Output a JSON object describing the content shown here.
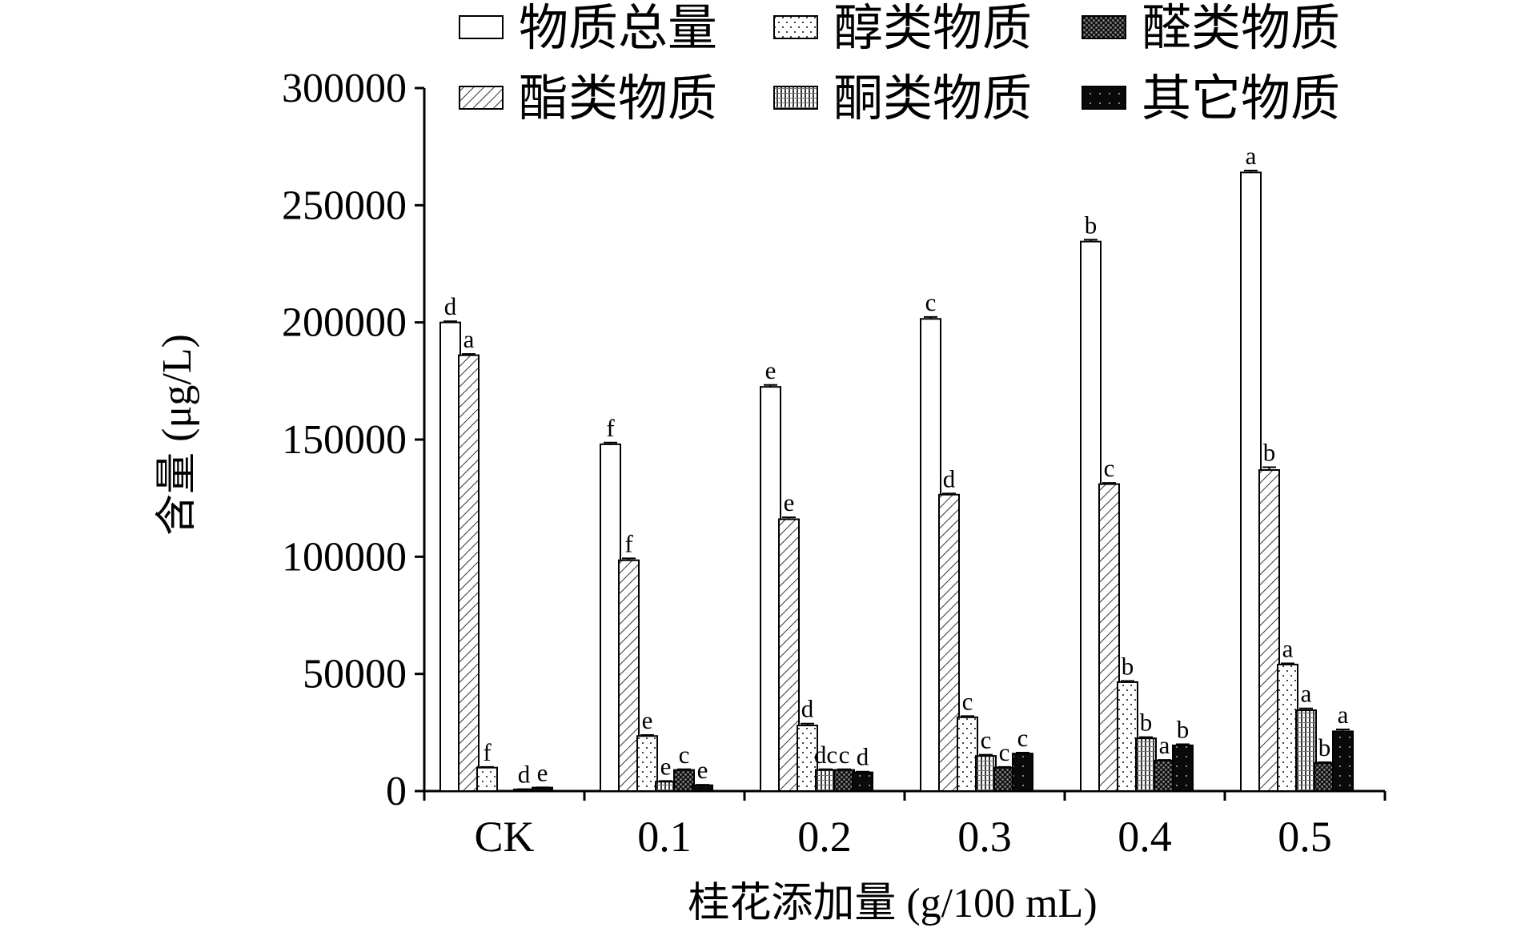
{
  "chart_data": {
    "type": "bar",
    "title": "",
    "xlabel": "桂花添加量 (g/100 mL)",
    "ylabel": "含量 (μg/L)",
    "ylim": [
      0,
      300000
    ],
    "yticks": [
      0,
      50000,
      100000,
      150000,
      200000,
      250000,
      300000
    ],
    "ytick_labels": [
      "0",
      "50000",
      "100000",
      "150000",
      "200000",
      "250000",
      "300000"
    ],
    "categories": [
      "CK",
      "0.1",
      "0.2",
      "0.3",
      "0.4",
      "0.5"
    ],
    "legend_position": "top",
    "series": [
      {
        "name": "物质总量",
        "pattern": "white",
        "values": [
          200000,
          148000,
          172500,
          201500,
          234500,
          264000
        ],
        "errors": [
          500,
          700,
          800,
          800,
          800,
          800
        ],
        "sig_labels": [
          "d",
          "f",
          "e",
          "c",
          "b",
          "a"
        ]
      },
      {
        "name": "酯类物质",
        "pattern": "diagonal",
        "values": [
          186000,
          98500,
          116000,
          126500,
          131000,
          137000
        ],
        "errors": [
          500,
          800,
          800,
          500,
          500,
          1200
        ],
        "sig_labels": [
          "a",
          "f",
          "e",
          "d",
          "c",
          "b"
        ]
      },
      {
        "name": "醇类物质",
        "pattern": "sparse-dots",
        "values": [
          10000,
          23500,
          28000,
          31500,
          46500,
          54000
        ],
        "errors": [
          300,
          400,
          800,
          500,
          500,
          500
        ],
        "sig_labels": [
          "f",
          "e",
          "d",
          "c",
          "b",
          "a"
        ]
      },
      {
        "name": "酮类物质",
        "pattern": "vertical-lines",
        "values": [
          0,
          4000,
          9000,
          15000,
          22500,
          34500
        ],
        "errors": [
          0,
          300,
          300,
          500,
          500,
          800
        ],
        "sig_labels": [
          "",
          "e",
          "dc",
          "c",
          "b",
          "a"
        ]
      },
      {
        "name": "醛类物质",
        "pattern": "crosshatch",
        "values": [
          700,
          9000,
          9000,
          10000,
          13000,
          12000
        ],
        "errors": [
          100,
          300,
          300,
          300,
          300,
          300
        ],
        "sig_labels": [
          "d",
          "c",
          "c",
          "c",
          "a",
          "b"
        ]
      },
      {
        "name": "其它物质",
        "pattern": "black",
        "values": [
          1500,
          2500,
          8000,
          16000,
          19500,
          25500
        ],
        "errors": [
          100,
          200,
          300,
          400,
          500,
          800
        ],
        "sig_labels": [
          "e",
          "e",
          "d",
          "c",
          "b",
          "a"
        ]
      }
    ],
    "legend_order": [
      "物质总量",
      "醇类物质",
      "醛类物质",
      "酯类物质",
      "酮类物质",
      "其它物质"
    ],
    "grid": false
  }
}
